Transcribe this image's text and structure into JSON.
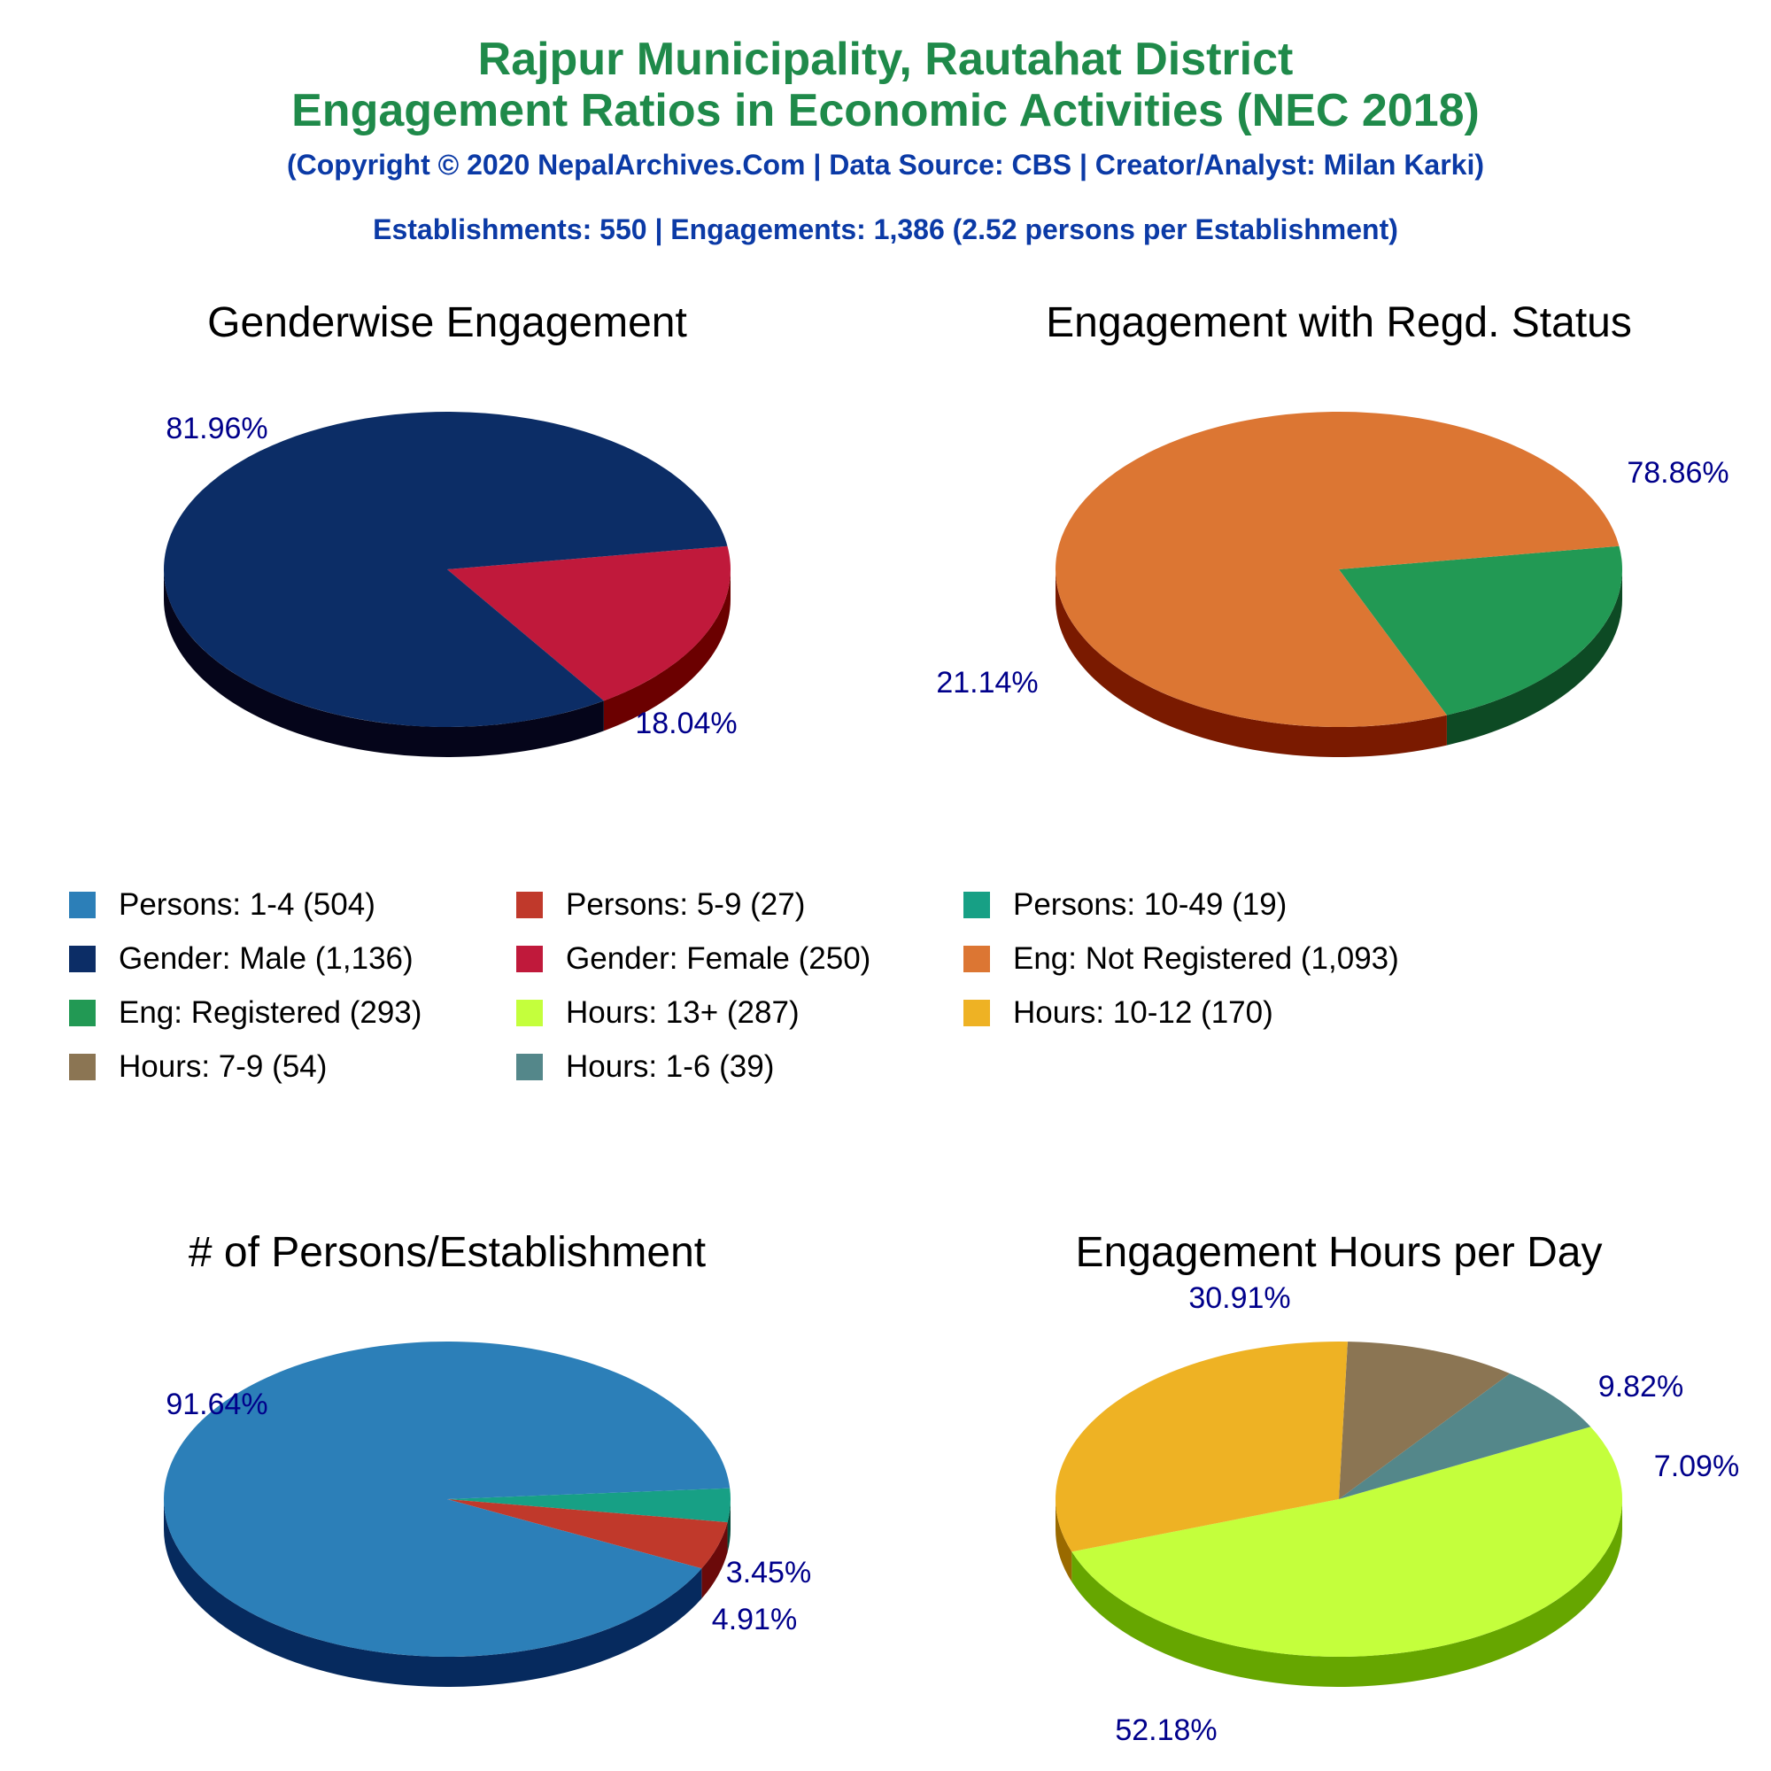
{
  "header": {
    "title_line1": "Rajpur Municipality, Rautahat District",
    "title_line2": "Engagement Ratios in Economic Activities (NEC 2018)",
    "copyright": "(Copyright © 2020 NepalArchives.Com | Data Source: CBS | Creator/Analyst: Milan Karki)",
    "summary": "Establishments: 550 | Engagements: 1,386 (2.52 persons per Establishment)"
  },
  "legend": [
    {
      "label": "Persons: 1-4 (504)",
      "color": "#2c7fb8"
    },
    {
      "label": "Persons: 5-9 (27)",
      "color": "#c0392b"
    },
    {
      "label": "Persons: 10-49 (19)",
      "color": "#17a085"
    },
    {
      "label": "Gender: Male (1,136)",
      "color": "#0c2d66"
    },
    {
      "label": "Gender: Female (250)",
      "color": "#c0193b"
    },
    {
      "label": "Eng: Not Registered (1,093)",
      "color": "#dc7633"
    },
    {
      "label": "Eng: Registered (293)",
      "color": "#229954"
    },
    {
      "label": "Hours: 13+ (287)",
      "color": "#c4ff3c"
    },
    {
      "label": "Hours: 10-12 (170)",
      "color": "#eeb224"
    },
    {
      "label": "Hours: 7-9 (54)",
      "color": "#8b7553"
    },
    {
      "label": "Hours: 1-6 (39)",
      "color": "#54878a"
    }
  ],
  "chart_data": [
    {
      "type": "pie",
      "title": "Genderwise Engagement",
      "categories": [
        "Gender: Male",
        "Gender: Female"
      ],
      "values": [
        81.96,
        18.04
      ],
      "labels": [
        "81.96%",
        "18.04%"
      ],
      "colors": [
        "#0c2d66",
        "#c0193b"
      ],
      "side_colors": [
        "#05051a",
        "#6b0000"
      ]
    },
    {
      "type": "pie",
      "title": "Engagement with Regd. Status",
      "categories": [
        "Eng: Not Registered",
        "Eng: Registered"
      ],
      "values": [
        78.86,
        21.14
      ],
      "labels": [
        "78.86%",
        "21.14%"
      ],
      "colors": [
        "#dc7633",
        "#229954"
      ],
      "side_colors": [
        "#7a1a00",
        "#0d4a24"
      ]
    },
    {
      "type": "pie",
      "title": "# of Persons/Establishment",
      "categories": [
        "Persons: 1-4",
        "Persons: 5-9",
        "Persons: 10-49"
      ],
      "values": [
        91.64,
        4.91,
        3.45
      ],
      "labels": [
        "91.64%",
        "4.91%",
        "3.45%"
      ],
      "colors": [
        "#2c7fb8",
        "#c0392b",
        "#17a085"
      ],
      "side_colors": [
        "#062a5e",
        "#6b0a0a",
        "#064a3a"
      ]
    },
    {
      "type": "pie",
      "title": "Engagement Hours per Day",
      "categories": [
        "Hours: 13+",
        "Hours: 10-12",
        "Hours: 7-9",
        "Hours: 1-6"
      ],
      "values": [
        52.18,
        30.91,
        9.82,
        7.09
      ],
      "labels": [
        "52.18%",
        "30.91%",
        "9.82%",
        "7.09%"
      ],
      "colors": [
        "#c4ff3c",
        "#eeb224",
        "#8b7553",
        "#54878a"
      ],
      "side_colors": [
        "#66a600",
        "#9a6a00",
        "#4a3a20",
        "#274a4d"
      ]
    }
  ]
}
